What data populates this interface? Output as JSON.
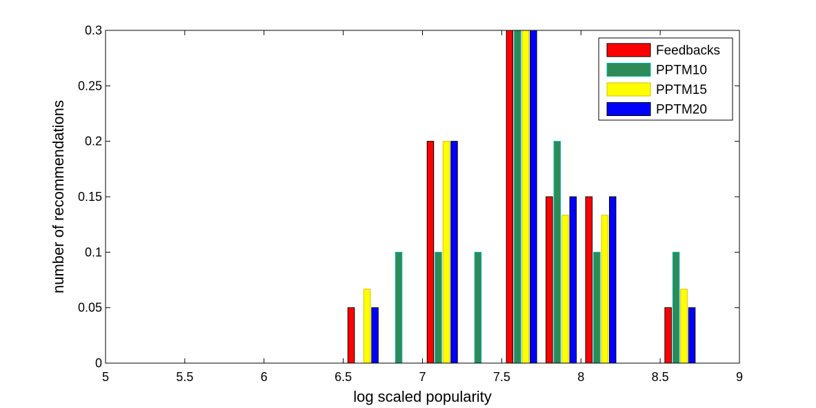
{
  "chart_data": {
    "type": "bar",
    "xlabel": "log scaled popularity",
    "ylabel": "number of recommendations",
    "xlim": [
      5,
      9
    ],
    "ylim": [
      0,
      0.3
    ],
    "xticks": [
      "5",
      "5.5",
      "6",
      "6.5",
      "7",
      "7.5",
      "8",
      "8.5",
      "9"
    ],
    "yticks": [
      "0",
      "0.05",
      "0.1",
      "0.15",
      "0.2",
      "0.25",
      "0.3"
    ],
    "x": [
      5.125,
      5.375,
      5.625,
      5.875,
      6.125,
      6.375,
      6.625,
      6.875,
      7.125,
      7.375,
      7.625,
      7.875,
      8.125,
      8.375,
      8.625,
      8.875
    ],
    "legend_position": "top-right",
    "grid": false,
    "series": [
      {
        "name": "Feedbacks",
        "color": "#ff0000",
        "edge": "#000000",
        "values": [
          0,
          0,
          0,
          0,
          0,
          0,
          0.05,
          0,
          0.2,
          0,
          0.3,
          0.15,
          0.15,
          0,
          0.05,
          0
        ]
      },
      {
        "name": "PPTM10",
        "color": "#2e8b57",
        "edge": "#00b4b4",
        "values": [
          0,
          0,
          0,
          0,
          0,
          0,
          0,
          0.1,
          0.1,
          0.1,
          0.3,
          0.2,
          0.1,
          0,
          0.1,
          0
        ]
      },
      {
        "name": "PPTM15",
        "color": "#ffff00",
        "edge": "#d4c200",
        "values": [
          0,
          0,
          0,
          0,
          0,
          0,
          0.0667,
          0,
          0.2,
          0,
          0.3,
          0.1333,
          0.1333,
          0,
          0.0667,
          0
        ]
      },
      {
        "name": "PPTM20",
        "color": "#0000ff",
        "edge": "#000000",
        "values": [
          0,
          0,
          0,
          0,
          0,
          0,
          0.05,
          0,
          0.2,
          0,
          0.3,
          0.15,
          0.15,
          0,
          0.05,
          0
        ]
      }
    ]
  }
}
